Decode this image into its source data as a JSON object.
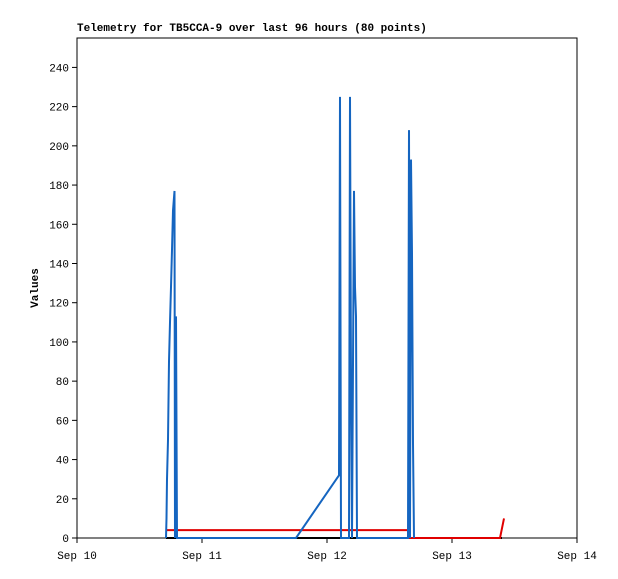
{
  "chart_data": {
    "type": "line",
    "title": "Telemetry for TB5CCA-9 over last 96 hours (80 points)",
    "y_label": "Values",
    "xlim": [
      10,
      14
    ],
    "xticks": [
      {
        "value": 10,
        "label": "Sep 10"
      },
      {
        "value": 11,
        "label": "Sep 11"
      },
      {
        "value": 12,
        "label": "Sep 12"
      },
      {
        "value": 13,
        "label": "Sep 13"
      },
      {
        "value": 14,
        "label": "Sep 14"
      }
    ],
    "ylim": [
      0,
      255
    ],
    "yticks": [
      0,
      20,
      40,
      60,
      80,
      100,
      120,
      140,
      160,
      180,
      200,
      220,
      240
    ],
    "grid": false,
    "series": [
      {
        "color": "#000000",
        "x": [
          10.712,
          13.4
        ],
        "values": [
          0,
          0
        ]
      },
      {
        "color": "#e00000",
        "x": [
          10.712,
          12.664,
          12.664,
          13.384,
          13.416
        ],
        "values": [
          4,
          4,
          0,
          0,
          10
        ]
      },
      {
        "color": "#1565c0",
        "x": [
          10.712,
          10.716,
          10.72,
          10.728,
          10.736,
          10.744,
          10.752,
          10.76,
          10.768,
          10.78,
          10.784,
          10.792,
          10.8,
          11.752,
          12.096,
          12.104,
          12.112,
          12.176,
          12.184,
          12.192,
          12.2,
          12.216,
          12.224,
          12.232,
          12.24,
          12.648,
          12.656,
          12.664,
          12.672,
          12.68,
          12.688,
          12.696
        ],
        "values": [
          0,
          10,
          30,
          50,
          90,
          110,
          128,
          147,
          167,
          177,
          0,
          113,
          0,
          0,
          32,
          225,
          0,
          0,
          225,
          80,
          0,
          177,
          128,
          113,
          0,
          0,
          208,
          0,
          193,
          145,
          48,
          0
        ]
      }
    ]
  }
}
